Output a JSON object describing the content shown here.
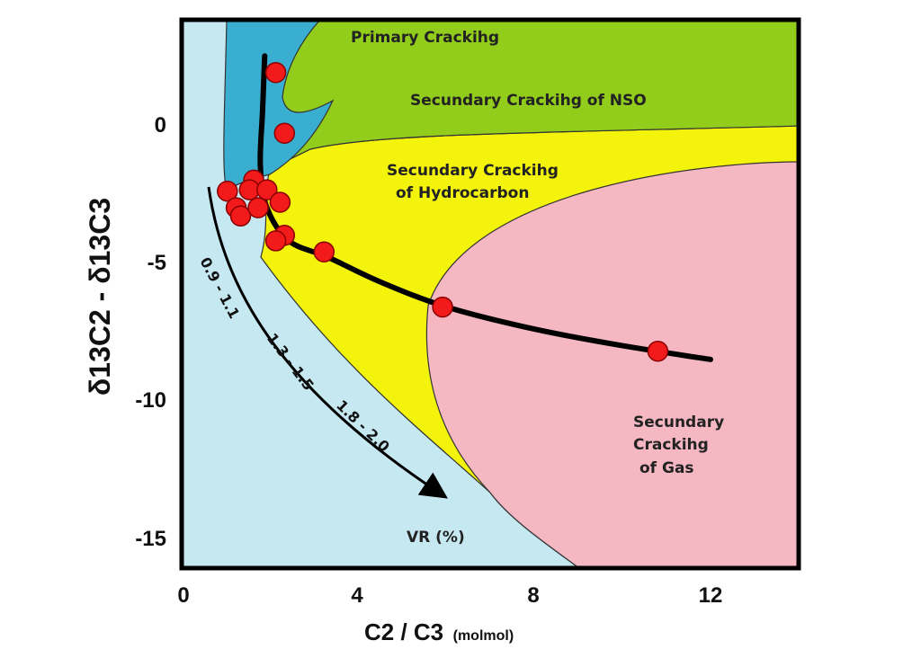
{
  "chart_data": {
    "type": "scatter",
    "title": "",
    "xlabel": {
      "main": "C2 / C3",
      "unit": "(molmol)"
    },
    "ylabel": {
      "main": "δ13C2 - δ13C3"
    },
    "xlim": [
      0,
      14
    ],
    "ylim": [
      -16,
      4
    ],
    "x_ticks": [
      "0",
      "4",
      "8",
      "12"
    ],
    "y_ticks": [
      "0",
      "-5",
      "-10",
      "-15"
    ],
    "grid": false,
    "regions": [
      {
        "name": "primary",
        "label": "Primary Crackihg",
        "color": "#3aaed0"
      },
      {
        "name": "nso",
        "label": "Secundary Crackihg of NSO",
        "color": "#93cd1c"
      },
      {
        "name": "hydrocarbon",
        "label_lines": [
          "Secundary Crackihg",
          "of Hydrocarbon"
        ],
        "color": "#f3f30c"
      },
      {
        "name": "gas",
        "label_lines": [
          "Secundary",
          "Crackihg",
          "of  Gas"
        ],
        "color": "#f5b8c2"
      },
      {
        "name": "background",
        "color": "#c5e8f1"
      }
    ],
    "maturity_arrow": {
      "labels": [
        "0.9 - 1.1",
        "1.3 - 1.5",
        "1.8 - 2.0"
      ],
      "axis_label": "VR (%)"
    },
    "trend_curve": {
      "points": [
        [
          1.85,
          2.5
        ],
        [
          1.8,
          0.5
        ],
        [
          1.75,
          -1.5
        ],
        [
          1.9,
          -3.0
        ],
        [
          2.4,
          -4.2
        ],
        [
          3.3,
          -4.8
        ],
        [
          4.5,
          -5.7
        ],
        [
          6.0,
          -6.6
        ],
        [
          8.0,
          -7.4
        ],
        [
          10.0,
          -8.0
        ],
        [
          12.0,
          -8.5
        ]
      ]
    },
    "points": [
      {
        "x": 2.1,
        "y": 1.9
      },
      {
        "x": 2.3,
        "y": -0.3
      },
      {
        "x": 1.6,
        "y": -2.0
      },
      {
        "x": 1.0,
        "y": -2.4
      },
      {
        "x": 1.5,
        "y": -2.35
      },
      {
        "x": 1.9,
        "y": -2.35
      },
      {
        "x": 1.2,
        "y": -3.0
      },
      {
        "x": 1.3,
        "y": -3.3
      },
      {
        "x": 1.7,
        "y": -3.0
      },
      {
        "x": 2.2,
        "y": -2.8
      },
      {
        "x": 2.3,
        "y": -4.0
      },
      {
        "x": 2.1,
        "y": -4.2
      },
      {
        "x": 3.2,
        "y": -4.6
      },
      {
        "x": 5.9,
        "y": -6.6
      },
      {
        "x": 10.8,
        "y": -8.2
      }
    ],
    "point_color": "#f21a1a",
    "curve_color": "#000000"
  }
}
